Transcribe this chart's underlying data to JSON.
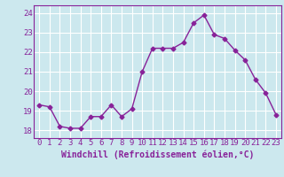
{
  "x": [
    0,
    1,
    2,
    3,
    4,
    5,
    6,
    7,
    8,
    9,
    10,
    11,
    12,
    13,
    14,
    15,
    16,
    17,
    18,
    19,
    20,
    21,
    22,
    23
  ],
  "y": [
    19.3,
    19.2,
    18.2,
    18.1,
    18.1,
    18.7,
    18.7,
    19.3,
    18.7,
    19.1,
    21.0,
    22.2,
    22.2,
    22.2,
    22.5,
    23.5,
    23.9,
    22.9,
    22.7,
    22.1,
    21.6,
    20.6,
    19.9,
    18.8
  ],
  "line_color": "#882299",
  "marker": "D",
  "marker_size": 2.5,
  "bg_color": "#cce8ee",
  "grid_color": "#ffffff",
  "xlabel": "Windchill (Refroidissement éolien,°C)",
  "xlabel_color": "#882299",
  "tick_color": "#882299",
  "ylim": [
    17.6,
    24.4
  ],
  "xlim": [
    -0.5,
    23.5
  ],
  "yticks": [
    18,
    19,
    20,
    21,
    22,
    23,
    24
  ],
  "xticks": [
    0,
    1,
    2,
    3,
    4,
    5,
    6,
    7,
    8,
    9,
    10,
    11,
    12,
    13,
    14,
    15,
    16,
    17,
    18,
    19,
    20,
    21,
    22,
    23
  ],
  "xtick_labels": [
    "0",
    "1",
    "2",
    "3",
    "4",
    "5",
    "6",
    "7",
    "8",
    "9",
    "10",
    "11",
    "12",
    "13",
    "14",
    "15",
    "16",
    "17",
    "18",
    "19",
    "20",
    "21",
    "22",
    "23"
  ],
  "line_width": 1.0,
  "font_size": 6.5,
  "xlabel_fontsize": 7.0
}
